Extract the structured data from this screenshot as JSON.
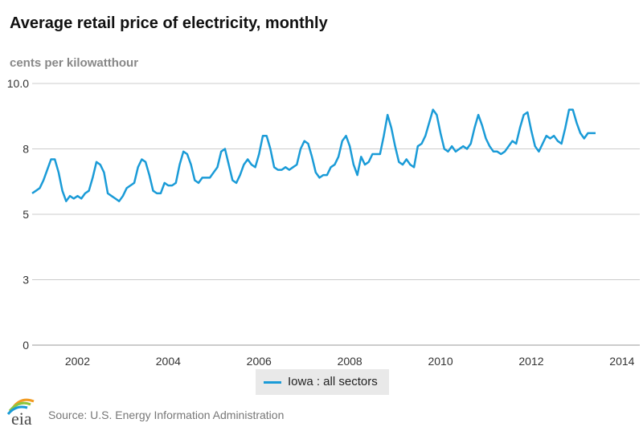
{
  "title": "Average retail price of electricity, monthly",
  "units": "cents per kilowatthour",
  "legend": {
    "label": "Iowa : all sectors"
  },
  "source": "Source: U.S. Energy Information Administration",
  "logo_text": "eia",
  "colors": {
    "series": "#1a9bd7",
    "grid": "#cccccc",
    "legend_bg": "#e9e9e9"
  },
  "chart_data": {
    "type": "line",
    "title": "Average retail price of electricity, monthly",
    "ylabel": "cents per kilowatthour",
    "xlabel": "",
    "x_start": "2001-01",
    "ylim": [
      0,
      10
    ],
    "xlim": [
      "2001-01",
      "2014-03"
    ],
    "y_ticks": [
      "0",
      "3",
      "5",
      "8",
      "10.0"
    ],
    "y_tick_values": [
      0,
      2.5,
      5,
      7.5,
      10
    ],
    "x_ticks": [
      "2002",
      "2004",
      "2006",
      "2008",
      "2010",
      "2012",
      "2014"
    ],
    "grid": true,
    "legend_position": "bottom",
    "series": [
      {
        "name": "Iowa : all sectors",
        "values": [
          5.8,
          5.9,
          6.0,
          6.3,
          6.7,
          7.1,
          7.1,
          6.6,
          5.9,
          5.5,
          5.7,
          5.6,
          5.7,
          5.6,
          5.8,
          5.9,
          6.4,
          7.0,
          6.9,
          6.6,
          5.8,
          5.7,
          5.6,
          5.5,
          5.7,
          6.0,
          6.1,
          6.2,
          6.8,
          7.1,
          7.0,
          6.5,
          5.9,
          5.8,
          5.8,
          6.2,
          6.1,
          6.1,
          6.2,
          6.9,
          7.4,
          7.3,
          6.9,
          6.3,
          6.2,
          6.4,
          6.4,
          6.4,
          6.6,
          6.8,
          7.4,
          7.5,
          6.9,
          6.3,
          6.2,
          6.5,
          6.9,
          7.1,
          6.9,
          6.8,
          7.3,
          8.0,
          8.0,
          7.5,
          6.8,
          6.7,
          6.7,
          6.8,
          6.7,
          6.8,
          6.9,
          7.5,
          7.8,
          7.7,
          7.2,
          6.6,
          6.4,
          6.5,
          6.5,
          6.8,
          6.9,
          7.2,
          7.8,
          8.0,
          7.6,
          6.9,
          6.5,
          7.2,
          6.9,
          7.0,
          7.3,
          7.3,
          7.3,
          8.0,
          8.8,
          8.3,
          7.6,
          7.0,
          6.9,
          7.1,
          6.9,
          6.8,
          7.6,
          7.7,
          8.0,
          8.5,
          9.0,
          8.8,
          8.1,
          7.5,
          7.4,
          7.6,
          7.4,
          7.5,
          7.6,
          7.5,
          7.7,
          8.3,
          8.8,
          8.4,
          7.9,
          7.6,
          7.4,
          7.4,
          7.3,
          7.4,
          7.6,
          7.8,
          7.7,
          8.3,
          8.8,
          8.9,
          8.2,
          7.6,
          7.4,
          7.7,
          8.0,
          7.9,
          8.0,
          7.8,
          7.7,
          8.3,
          9.0,
          9.0,
          8.5,
          8.1,
          7.9,
          8.1,
          8.1,
          8.1
        ]
      }
    ]
  }
}
